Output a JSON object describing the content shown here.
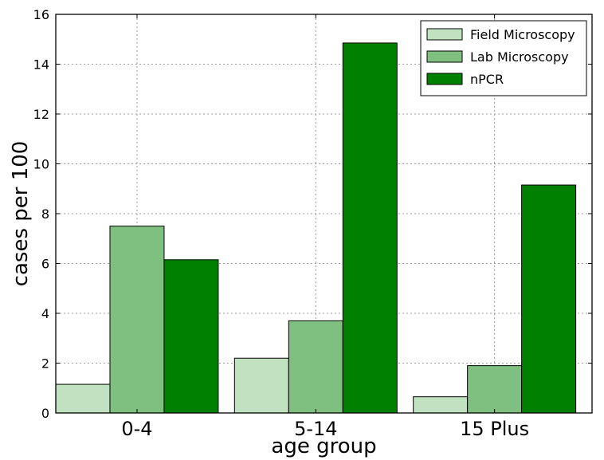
{
  "chart_data": {
    "type": "bar",
    "title": "",
    "xlabel": "age group",
    "ylabel": "cases per 100",
    "categories": [
      "0-4",
      "5-14",
      "15 Plus"
    ],
    "series": [
      {
        "name": "Field Microscopy",
        "values": [
          1.15,
          2.2,
          0.65
        ],
        "color": "#c0e2c0"
      },
      {
        "name": "Lab Microscopy",
        "values": [
          7.5,
          3.7,
          1.9
        ],
        "color": "#7fbf7f"
      },
      {
        "name": "nPCR",
        "values": [
          6.15,
          14.85,
          9.15
        ],
        "color": "#008000"
      }
    ],
    "ylim": [
      0,
      16
    ],
    "yticks": [
      "0",
      "2",
      "4",
      "6",
      "8",
      "10",
      "12",
      "14",
      "16"
    ],
    "grid": true,
    "legend_position": "top-right"
  }
}
